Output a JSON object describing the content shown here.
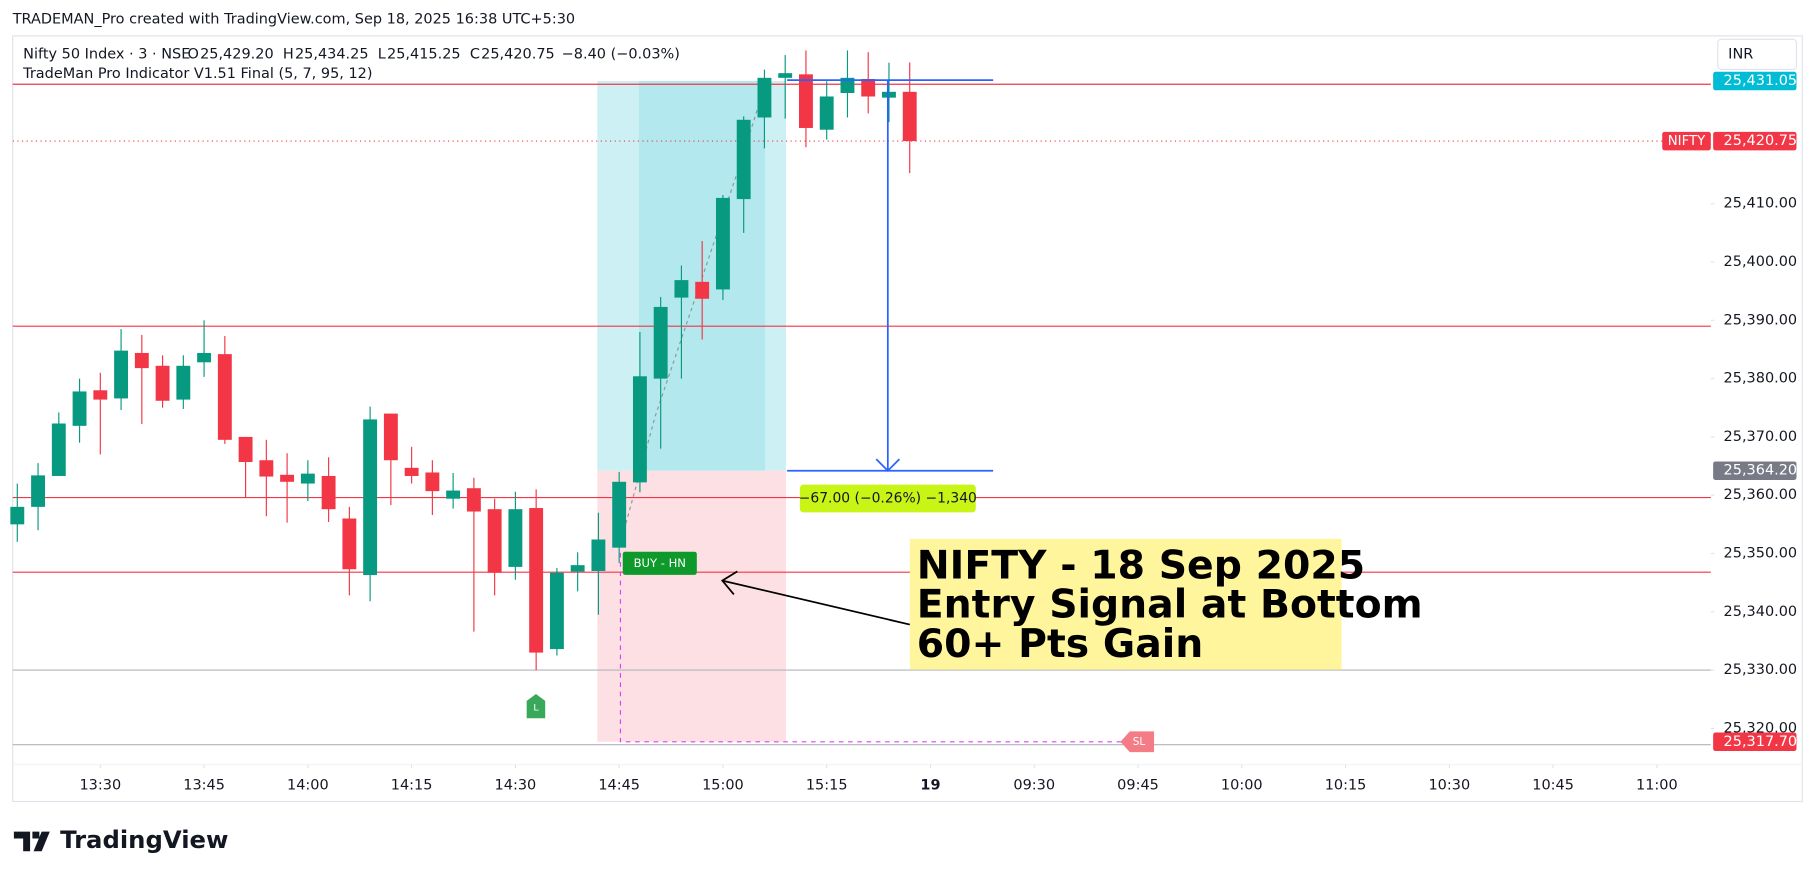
{
  "header": {
    "credit": "TRADEMAN_Pro created with TradingView.com, Sep 18, 2025 16:38 UTC+5:30"
  },
  "chart_data": {
    "type": "candlestick",
    "symbol": "Nifty 50 Index · 3 · NSE",
    "ohlc": [
      {
        "key": "O",
        "value": "25,429.20"
      },
      {
        "key": "H",
        "value": "25,434.25"
      },
      {
        "key": "L",
        "value": "25,415.25"
      },
      {
        "key": "C",
        "value": "25,420.75"
      }
    ],
    "change": "−8.40 (−0.03%)",
    "indicator": "TradeMan Pro Indicator V1.51 Final (5, 7, 95, 12)",
    "currency": "INR",
    "x": [
      0,
      1,
      2,
      3,
      4,
      5,
      6,
      7,
      8,
      9,
      10,
      11,
      12,
      13,
      14,
      15,
      16,
      17,
      18,
      19,
      20,
      21,
      22,
      23,
      24,
      25,
      26,
      27,
      28,
      29,
      30,
      31,
      32,
      33,
      34,
      35,
      36,
      37,
      38,
      39,
      40,
      41,
      42,
      43
    ],
    "open": [
      25355,
      25358,
      25363.3,
      25371.9,
      25378,
      25376.6,
      25384.4,
      25382.2,
      25376.4,
      25382.8,
      25384.2,
      25370,
      25366,
      25363.5,
      25362,
      25363.3,
      25356,
      25346.3,
      25374,
      25364.7,
      25363.9,
      25359.4,
      25361.2,
      25357.6,
      25347.7,
      25357.8,
      25333.6,
      25346.9,
      25347,
      25351,
      25362.2,
      25380,
      25393.9,
      25396.6,
      25395.3,
      25410.8,
      25424.8,
      25431.6,
      25432.2,
      25422.7,
      25429,
      25431.4,
      25428.2,
      25429.2
    ],
    "high": [
      25362,
      25365.5,
      25374.2,
      25380,
      25381,
      25388.5,
      25387.5,
      25384,
      25384,
      25390,
      25387.3,
      25370,
      25369.5,
      25367.2,
      25366,
      25366.5,
      25358,
      25375.2,
      25374,
      25368.3,
      25366,
      25363.8,
      25363,
      25359.4,
      25360.6,
      25361,
      25347.5,
      25350.2,
      25357,
      25364,
      25388,
      25394,
      25399.4,
      25403.6,
      25411.5,
      25425,
      25433,
      25435.5,
      25436.3,
      25431,
      25436.3,
      25436,
      25434.2,
      25434.25
    ],
    "low": [
      25352,
      25354,
      25363.3,
      25369,
      25367,
      25374.6,
      25372.2,
      25375,
      25374.8,
      25380.3,
      25368.8,
      25359.5,
      25356.4,
      25355.3,
      25359,
      25355.4,
      25342.8,
      25341.8,
      25358.3,
      25362,
      25356.6,
      25357.7,
      25336.6,
      25342.8,
      25345.5,
      25330,
      25332.5,
      25343.5,
      25339.5,
      25348.4,
      25360.5,
      25368,
      25380,
      25386.7,
      25393.5,
      25405,
      25419.5,
      25424.6,
      25419.7,
      25421,
      25424.8,
      25425.5,
      25424,
      25415.25
    ],
    "close": [
      25358,
      25363.4,
      25372.3,
      25377.8,
      25376.4,
      25384.8,
      25381.8,
      25376.2,
      25382.2,
      25384.4,
      25369.5,
      25365.7,
      25363.2,
      25362.3,
      25363.7,
      25357.6,
      25347.3,
      25373,
      25366,
      25363.3,
      25360.7,
      25360.8,
      25357.2,
      25346.7,
      25357.6,
      25333,
      25346.7,
      25348,
      25352.4,
      25362.3,
      25380.4,
      25392.3,
      25396.9,
      25393.7,
      25411,
      25424.4,
      25431.6,
      25432.4,
      25423,
      25428.4,
      25431.6,
      25428.4,
      25429.2,
      25420.75
    ],
    "up_color": "#089981",
    "down_color": "#f23645",
    "xlim": [
      -0.22,
      81.6
    ],
    "ylim": [
      25314,
      25439
    ],
    "xticks": [
      {
        "value": 4,
        "label": "13:30"
      },
      {
        "value": 9,
        "label": "13:45"
      },
      {
        "value": 14,
        "label": "14:00"
      },
      {
        "value": 19,
        "label": "14:15"
      },
      {
        "value": 24,
        "label": "14:30"
      },
      {
        "value": 29,
        "label": "14:45"
      },
      {
        "value": 34,
        "label": "15:00"
      },
      {
        "value": 39,
        "label": "15:15"
      },
      {
        "value": 44,
        "label": "19"
      },
      {
        "value": 49,
        "label": "09:30"
      },
      {
        "value": 54,
        "label": "09:45"
      },
      {
        "value": 59,
        "label": "10:00"
      },
      {
        "value": 64,
        "label": "10:15"
      },
      {
        "value": 69,
        "label": "10:30"
      },
      {
        "value": 74,
        "label": "10:45"
      },
      {
        "value": 79,
        "label": "11:00"
      }
    ],
    "yticks": [
      {
        "value": 25320,
        "label": "25,320.00"
      },
      {
        "value": 25330,
        "label": "25,330.00"
      },
      {
        "value": 25340,
        "label": "25,340.00"
      },
      {
        "value": 25350,
        "label": "25,350.00"
      },
      {
        "value": 25360,
        "label": "25,360.00"
      },
      {
        "value": 25370,
        "label": "25,370.00"
      },
      {
        "value": 25380,
        "label": "25,380.00"
      },
      {
        "value": 25390,
        "label": "25,390.00"
      },
      {
        "value": 25400,
        "label": "25,400.00"
      },
      {
        "value": 25410,
        "label": "25,410.00"
      }
    ],
    "grid": false,
    "levels": [
      {
        "value": 25430.5,
        "color": "#f23645"
      },
      {
        "value": 25389,
        "color": "#f23645"
      },
      {
        "value": 25359.6,
        "color": "#f23645"
      },
      {
        "value": 25346.8,
        "color": "#f23645"
      },
      {
        "value": 25330,
        "color": "#b2b5be"
      },
      {
        "value": 25317.2,
        "color": "#b2b5be"
      }
    ],
    "position": {
      "target": 25431.05,
      "entry": 25364.2,
      "stop": 25317.7
    },
    "measure": {
      "from": 25431.2,
      "to": 25364.2,
      "label": "−67.00 (−0.26%) −1,340"
    },
    "price_tags": [
      {
        "value": 25431.05,
        "label": "25,431.05",
        "color": "#00bcd4"
      },
      {
        "name": "NIFTY",
        "value": 25420.75,
        "label": "25,420.75",
        "color": "#f23645"
      },
      {
        "value": 25364.2,
        "label": "25,364.20",
        "color": "#787b86"
      },
      {
        "value": 25317.7,
        "label": "25,317.70",
        "color": "#f23645"
      }
    ],
    "signals": {
      "buy": "BUY - HN",
      "low": "L",
      "stop": "SL"
    },
    "annotation": [
      "NIFTY - 18 Sep 2025",
      "Entry Signal at Bottom",
      "60+ Pts Gain"
    ]
  },
  "footer": {
    "brand": "TradingView"
  }
}
